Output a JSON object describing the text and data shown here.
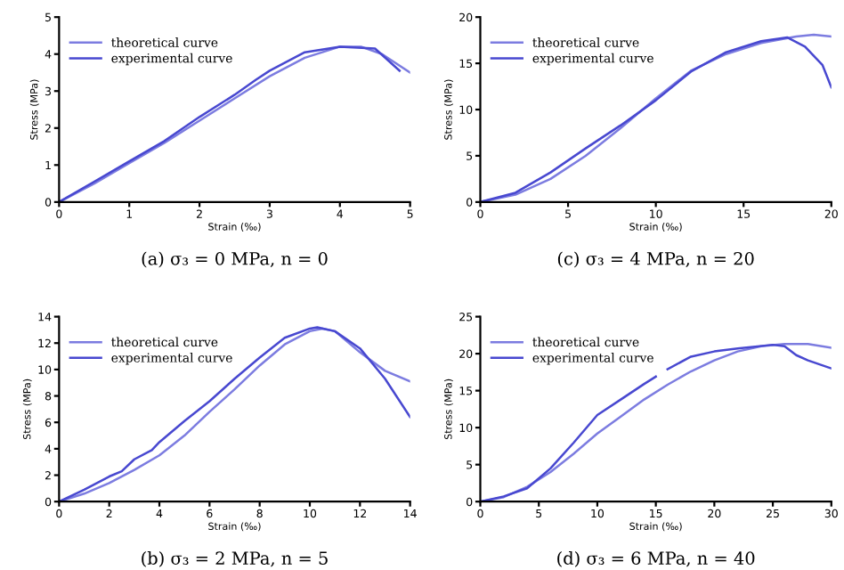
{
  "chart_data": [
    {
      "type": "line",
      "title": "(a) σ₃ = 0 MPa, n = 0",
      "xlabel": "Strain (‰)",
      "ylabel": "Stress (MPa)",
      "xlim": [
        0,
        5
      ],
      "ylim": [
        0,
        5
      ],
      "xticks": [
        0,
        1,
        2,
        3,
        4,
        5
      ],
      "yticks": [
        0,
        1,
        2,
        3,
        4,
        5
      ],
      "grid": false,
      "legend": "top left",
      "series": [
        {
          "name": "theoretical curve",
          "color": "#7c7ce0",
          "x": [
            0,
            0.5,
            1,
            1.5,
            2,
            2.5,
            3,
            3.5,
            4,
            4.3,
            4.6,
            5
          ],
          "values": [
            0,
            0.5,
            1.05,
            1.6,
            2.2,
            2.8,
            3.4,
            3.9,
            4.2,
            4.2,
            4.0,
            3.5
          ]
        },
        {
          "name": "experimental curve",
          "color": "#4848d0",
          "x": [
            0,
            0.5,
            1,
            1.5,
            2,
            2.5,
            2.8,
            3,
            3.5,
            4,
            4.5,
            4.85
          ],
          "values": [
            0,
            0.55,
            1.1,
            1.65,
            2.3,
            2.9,
            3.3,
            3.55,
            4.05,
            4.2,
            4.15,
            3.55
          ]
        }
      ]
    },
    {
      "type": "line",
      "title": "(c) σ₃ = 4 MPa, n = 20",
      "xlabel": "Strain (‰)",
      "ylabel": "Stress (MPa)",
      "xlim": [
        0,
        20
      ],
      "ylim": [
        0,
        20
      ],
      "xticks": [
        0,
        5,
        10,
        15,
        20
      ],
      "yticks": [
        0,
        5,
        10,
        15,
        20
      ],
      "grid": false,
      "legend": "top left",
      "series": [
        {
          "name": "theoretical curve",
          "color": "#7c7ce0",
          "x": [
            0,
            2,
            4,
            6,
            8,
            10,
            12,
            14,
            16,
            18,
            19,
            20
          ],
          "values": [
            0,
            0.8,
            2.5,
            5,
            8,
            11.2,
            14.2,
            16,
            17.2,
            17.9,
            18.1,
            17.9
          ]
        },
        {
          "name": "experimental curve",
          "color": "#4848d0",
          "x": [
            0,
            2,
            4,
            6,
            8,
            10,
            12,
            14,
            16,
            17.5,
            18.5,
            19.5,
            20
          ],
          "values": [
            0,
            1.0,
            3.2,
            5.8,
            8.3,
            11,
            14.1,
            16.2,
            17.4,
            17.8,
            16.8,
            14.8,
            12.4
          ]
        }
      ]
    },
    {
      "type": "line",
      "title": "(b) σ₃ = 2 MPa, n = 5",
      "xlabel": "Strain (‰)",
      "ylabel": "Stress (MPa)",
      "xlim": [
        0,
        14
      ],
      "ylim": [
        0,
        14
      ],
      "xticks": [
        0,
        2,
        4,
        6,
        8,
        10,
        12,
        14
      ],
      "yticks": [
        0,
        2,
        4,
        6,
        8,
        10,
        12,
        14
      ],
      "grid": false,
      "legend": "top left",
      "series": [
        {
          "name": "theoretical curve",
          "color": "#7c7ce0",
          "x": [
            0,
            1,
            2,
            3,
            4,
            5,
            6,
            7,
            8,
            9,
            10,
            10.5,
            11,
            12,
            13,
            14
          ],
          "values": [
            0,
            0.6,
            1.4,
            2.4,
            3.5,
            5.0,
            6.8,
            8.5,
            10.3,
            11.9,
            12.9,
            13.1,
            12.9,
            11.3,
            9.9,
            9.1
          ]
        },
        {
          "name": "experimental curve",
          "color": "#4848d0",
          "x": [
            0,
            1,
            2,
            2.5,
            3,
            3.7,
            4,
            5,
            6,
            7,
            8,
            9,
            10,
            10.3,
            11,
            12,
            13,
            14
          ],
          "values": [
            0,
            0.9,
            1.9,
            2.3,
            3.2,
            3.9,
            4.5,
            6.1,
            7.6,
            9.3,
            10.9,
            12.4,
            13.1,
            13.2,
            12.9,
            11.6,
            9.3,
            6.4
          ]
        }
      ]
    },
    {
      "type": "line",
      "title": "(d) σ₃ = 6 MPa, n = 40",
      "xlabel": "Strain (‰)",
      "ylabel": "Stress (MPa)",
      "xlim": [
        0,
        30
      ],
      "ylim": [
        0,
        25
      ],
      "xticks": [
        0,
        5,
        10,
        15,
        20,
        25,
        30
      ],
      "yticks": [
        0,
        5,
        10,
        15,
        20,
        25
      ],
      "grid": false,
      "legend": "top left",
      "series": [
        {
          "name": "theoretical curve",
          "color": "#7c7ce0",
          "x": [
            0,
            2,
            4,
            6,
            8,
            10,
            12,
            14,
            16,
            18,
            20,
            22,
            24,
            26,
            28,
            30
          ],
          "values": [
            0,
            0.6,
            2.0,
            4.0,
            6.5,
            9.2,
            11.5,
            13.8,
            15.8,
            17.6,
            19.1,
            20.3,
            21.0,
            21.3,
            21.3,
            20.8
          ]
        },
        {
          "name": "experimental curve",
          "color": "#4848d0",
          "x": [
            0,
            2,
            4,
            6,
            8,
            10,
            12,
            14,
            15,
            15.5,
            16,
            18,
            20,
            22,
            25,
            26,
            27,
            28,
            30
          ],
          "values": [
            0,
            0.7,
            1.8,
            4.5,
            8,
            11.7,
            13.8,
            15.9,
            16.9,
            null,
            17.9,
            19.6,
            20.3,
            20.7,
            21.2,
            21.0,
            19.8,
            19.1,
            18.0
          ]
        }
      ]
    }
  ]
}
